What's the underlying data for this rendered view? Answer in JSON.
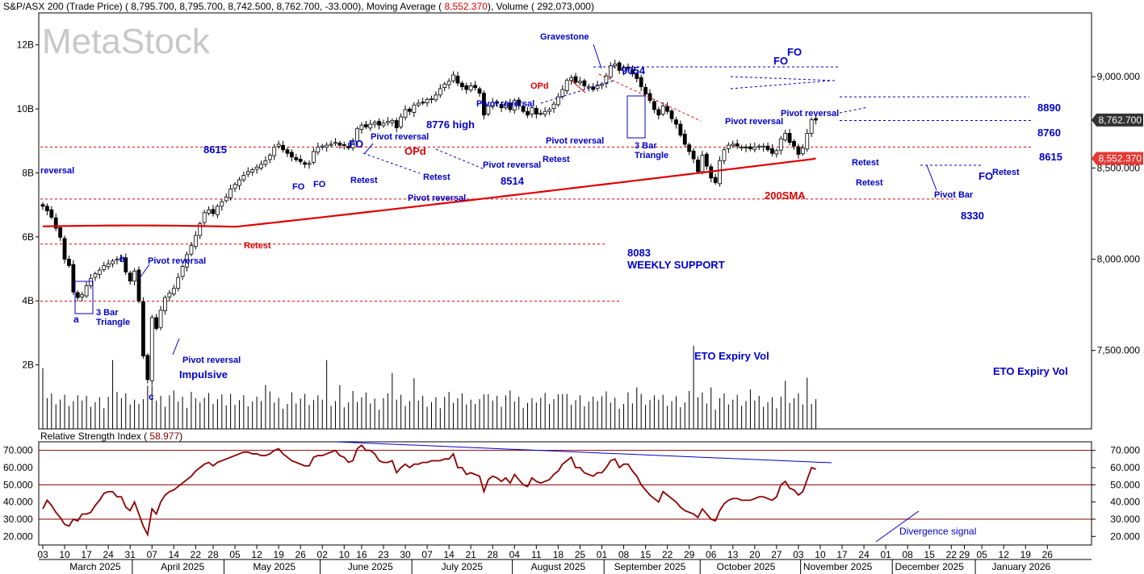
{
  "chart_data": [
    {
      "type": "candlestick",
      "header": {
        "symbol_label": "S&P/ASX 200 (Trade Price)",
        "open": "8,795.700",
        "high": "8,795.700",
        "low": "8,742.500",
        "close": "8,762.700",
        "change": "-33.000",
        "ma_label": "Moving Average",
        "ma_value": "8,552.370",
        "vol_label": "Volume",
        "vol_value": "292,073,000"
      },
      "watermark": "MetaStock",
      "price_axis": {
        "range": [
          7070,
          9350
        ],
        "ticks": [
          {
            "value": 9000,
            "label": "9,000.000"
          },
          {
            "value": 8500,
            "label": "8,500.000"
          },
          {
            "value": 8000,
            "label": "8,000.000"
          },
          {
            "value": 7500,
            "label": "7,500.000"
          }
        ],
        "last_price": {
          "value": 8762.7,
          "label": "8,762.700"
        },
        "ma_price": {
          "value": 8552.37,
          "label": "8,552.370"
        }
      },
      "volume_axis": {
        "unit_max": 13,
        "ticks": [
          {
            "value": 2,
            "label": "2B"
          },
          {
            "value": 4,
            "label": "4B"
          },
          {
            "value": 6,
            "label": "6B"
          },
          {
            "value": 8,
            "label": "8B"
          },
          {
            "value": 10,
            "label": "10B"
          },
          {
            "value": 12,
            "label": "12B"
          }
        ]
      },
      "x_axis": {
        "day_ticks": [
          {
            "i": 0,
            "label": "03"
          },
          {
            "i": 5,
            "label": "10"
          },
          {
            "i": 10,
            "label": "17"
          },
          {
            "i": 15,
            "label": "24"
          },
          {
            "i": 20,
            "label": "31"
          },
          {
            "i": 25,
            "label": "07"
          },
          {
            "i": 30,
            "label": "14"
          },
          {
            "i": 35,
            "label": "22"
          },
          {
            "i": 39,
            "label": "28"
          },
          {
            "i": 44,
            "label": "05"
          },
          {
            "i": 49,
            "label": "12"
          },
          {
            "i": 54,
            "label": "19"
          },
          {
            "i": 59,
            "label": "26"
          },
          {
            "i": 64,
            "label": "02"
          },
          {
            "i": 69,
            "label": "10"
          },
          {
            "i": 73,
            "label": "16"
          },
          {
            "i": 78,
            "label": "23"
          },
          {
            "i": 83,
            "label": "30"
          },
          {
            "i": 88,
            "label": "07"
          },
          {
            "i": 93,
            "label": "14"
          },
          {
            "i": 98,
            "label": "21"
          },
          {
            "i": 103,
            "label": "28"
          },
          {
            "i": 108,
            "label": "04"
          },
          {
            "i": 113,
            "label": "11"
          },
          {
            "i": 118,
            "label": "18"
          },
          {
            "i": 123,
            "label": "25"
          },
          {
            "i": 128,
            "label": "01"
          },
          {
            "i": 133,
            "label": "08"
          },
          {
            "i": 138,
            "label": "15"
          },
          {
            "i": 143,
            "label": "22"
          },
          {
            "i": 148,
            "label": "29"
          },
          {
            "i": 153,
            "label": "06"
          },
          {
            "i": 158,
            "label": "13"
          },
          {
            "i": 163,
            "label": "20"
          },
          {
            "i": 168,
            "label": "27"
          },
          {
            "i": 173,
            "label": "03"
          },
          {
            "i": 178,
            "label": "10"
          },
          {
            "i": 183,
            "label": "17"
          },
          {
            "i": 188,
            "label": "24"
          },
          {
            "i": 193,
            "label": "01"
          },
          {
            "i": 198,
            "label": "08"
          },
          {
            "i": 203,
            "label": "15"
          },
          {
            "i": 208,
            "label": "22"
          },
          {
            "i": 211,
            "label": "29"
          },
          {
            "i": 215,
            "label": "05"
          },
          {
            "i": 220,
            "label": "12"
          },
          {
            "i": 225,
            "label": "19"
          },
          {
            "i": 230,
            "label": "26"
          }
        ],
        "months": [
          {
            "i": 12,
            "label": "March 2025"
          },
          {
            "i": 32,
            "label": "April 2025"
          },
          {
            "i": 53,
            "label": "May 2025"
          },
          {
            "i": 75,
            "label": "June 2025"
          },
          {
            "i": 96,
            "label": "July 2025"
          },
          {
            "i": 118,
            "label": "August 2025"
          },
          {
            "i": 139,
            "label": "September 2025"
          },
          {
            "i": 161,
            "label": "October 2025"
          },
          {
            "i": 182,
            "label": "November 2025"
          },
          {
            "i": 203,
            "label": "December 2025"
          },
          {
            "i": 224,
            "label": "January 2026"
          }
        ]
      },
      "closes": [
        8290,
        8265,
        8230,
        8170,
        8120,
        8000,
        7965,
        7820,
        7790,
        7805,
        7855,
        7895,
        7920,
        7940,
        7965,
        7975,
        7990,
        8000,
        8005,
        7930,
        7880,
        7935,
        7770,
        7470,
        7340,
        7680,
        7620,
        7720,
        7790,
        7815,
        7840,
        7900,
        7960,
        8025,
        8075,
        8130,
        8195,
        8255,
        8270,
        8250,
        8290,
        8315,
        8340,
        8385,
        8410,
        8435,
        8460,
        8480,
        8490,
        8505,
        8520,
        8540,
        8570,
        8615,
        8630,
        8600,
        8580,
        8560,
        8545,
        8535,
        8520,
        8525,
        8590,
        8615,
        8620,
        8625,
        8630,
        8640,
        8625,
        8625,
        8610,
        8640,
        8715,
        8735,
        8725,
        8740,
        8750,
        8735,
        8745,
        8755,
        8760,
        8720,
        8780,
        8820,
        8810,
        8845,
        8855,
        8860,
        8875,
        8880,
        8900,
        8935,
        8960,
        8975,
        9010,
        8965,
        8945,
        8930,
        8950,
        8940,
        8910,
        8790,
        8840,
        8860,
        8855,
        8830,
        8850,
        8820,
        8870,
        8845,
        8810,
        8790,
        8830,
        8795,
        8800,
        8810,
        8820,
        8850,
        8890,
        8930,
        8980,
        8995,
        8970,
        8975,
        8950,
        8945,
        8930,
        8955,
        8960,
        9005,
        9060,
        9070,
        9035,
        9050,
        9045,
        9015,
        8990,
        8945,
        8905,
        8870,
        8820,
        8790,
        8840,
        8810,
        8770,
        8740,
        8680,
        8630,
        8590,
        8550,
        8480,
        8570,
        8510,
        8445,
        8420,
        8540,
        8600,
        8625,
        8630,
        8620,
        8615,
        8610,
        8605,
        8615,
        8620,
        8620,
        8600,
        8580,
        8595,
        8660,
        8690,
        8640,
        8620,
        8575,
        8610,
        8690,
        8765,
        8762.7
      ],
      "rsi": {
        "label": "Relative Strength Index",
        "value": "58.977",
        "range": [
          15,
          75
        ],
        "ticks": [
          70,
          60,
          50,
          40,
          30,
          20
        ],
        "tick_labels": [
          "70.000",
          "60.000",
          "50.000",
          "40.000",
          "30.000",
          "20.000"
        ],
        "left_tick_labels": [
          "70.000",
          "60.000",
          "50.000",
          "40.000",
          "30.000",
          "20.000"
        ],
        "bands": [
          70,
          50,
          30
        ],
        "values": [
          36,
          41,
          38,
          34,
          31,
          27,
          26,
          30,
          29,
          33,
          33,
          34,
          38,
          41,
          45,
          46,
          46,
          43,
          43,
          37,
          35,
          40,
          33,
          26,
          21,
          36,
          33,
          40,
          44,
          46,
          47,
          49,
          51,
          53,
          55,
          58,
          60,
          62,
          63,
          61,
          63,
          64,
          65,
          66,
          67,
          68,
          69,
          69,
          68,
          68,
          67,
          67,
          68,
          70,
          71,
          68,
          66,
          64,
          63,
          62,
          61,
          61,
          66,
          67,
          67,
          68,
          69,
          70,
          67,
          66,
          63,
          64,
          71,
          73,
          70,
          70,
          68,
          64,
          63,
          63,
          64,
          57,
          60,
          62,
          60,
          62,
          62,
          63,
          63,
          64,
          64,
          64,
          65,
          65,
          68,
          60,
          60,
          56,
          57,
          56,
          55,
          46,
          53,
          55,
          54,
          52,
          54,
          51,
          56,
          53,
          50,
          49,
          54,
          52,
          51,
          52,
          53,
          56,
          58,
          62,
          64,
          66,
          60,
          60,
          57,
          56,
          55,
          57,
          57,
          60,
          64,
          65,
          60,
          62,
          62,
          58,
          55,
          50,
          47,
          44,
          42,
          40,
          46,
          44,
          42,
          40,
          37,
          35,
          34,
          33,
          31,
          36,
          33,
          30,
          29,
          35,
          39,
          41,
          42,
          42,
          41,
          41,
          41,
          42,
          43,
          43,
          42,
          41,
          43,
          50,
          52,
          48,
          47,
          44,
          46,
          53,
          60,
          59
        ]
      },
      "annotations": [
        {
          "text": "Gravestone",
          "color": "#0000cc"
        },
        {
          "text": "9054",
          "color": "#0000cc"
        },
        {
          "text": "OPd",
          "color": "#e00000"
        },
        {
          "text": "Pivot reversal",
          "color": "#0000cc"
        },
        {
          "text": "8776 high",
          "color": "#0000cc"
        },
        {
          "text": "FO",
          "color": "#0000cc"
        },
        {
          "text": "8615",
          "color": "#0000cc"
        },
        {
          "text": "8514",
          "color": "#0000cc"
        },
        {
          "text": "8890",
          "color": "#0000cc"
        },
        {
          "text": "8760",
          "color": "#0000cc"
        },
        {
          "text": "8330",
          "color": "#0000cc"
        },
        {
          "text": "8083",
          "color": "#0000cc"
        },
        {
          "text": "WEEKLY SUPPORT",
          "color": "#0000cc"
        },
        {
          "text": "200SMA",
          "color": "#e00000"
        },
        {
          "text": "Retest",
          "color": "#0000cc"
        },
        {
          "text": "3 Bar Triangle",
          "color": "#0000cc"
        },
        {
          "text": "Pivot Bar",
          "color": "#0000cc"
        },
        {
          "text": "Impulsive",
          "color": "#0000cc"
        },
        {
          "text": "ETO Expiry Vol",
          "color": "#0000cc"
        },
        {
          "text": "Divergence signal",
          "color": "#0000cc"
        },
        {
          "text": "reversal",
          "color": "#0000cc"
        },
        {
          "text": "a",
          "color": "#0000cc"
        },
        {
          "text": "b",
          "color": "#0000cc"
        },
        {
          "text": "c",
          "color": "#0000cc"
        }
      ],
      "colors": {
        "ma": "#e00000",
        "rsi": "#8b0000",
        "annotation": "#0000cc",
        "annotation_red": "#e00000"
      }
    }
  ]
}
